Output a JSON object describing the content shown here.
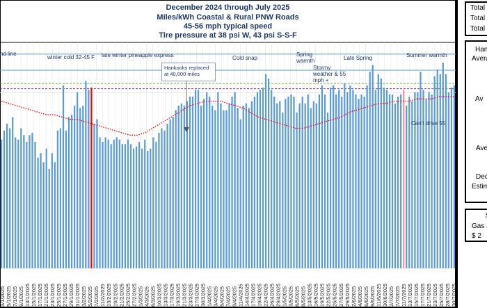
{
  "chart_data": {
    "type": "bar",
    "title_lines": [
      "December 2024 through July 2025",
      "Miles/kWh Coastal & Rural PNW Roads",
      "45-56 mph typical speed",
      "Tire pressure at 38 psi W, 43 psi S-S-F"
    ],
    "annotations": [
      {
        "key": "a0",
        "text": "nd line"
      },
      {
        "key": "a1",
        "text": "winter cold  32-45 F"
      },
      {
        "key": "a2",
        "text": "late winter pineapple express"
      },
      {
        "key": "a3",
        "text": "Cold snap"
      },
      {
        "key": "a4",
        "text": "Spring warmth"
      },
      {
        "key": "a5",
        "text": "Stormy weather & 55 mph +"
      },
      {
        "key": "a6",
        "text": "Late Spring"
      },
      {
        "key": "a7",
        "text": "Summer warmth"
      },
      {
        "key": "a8",
        "text": "Can't drive 55"
      }
    ],
    "callout": "Hankooks  replaced at 40,000 miles",
    "x_labels": [
      "3/1/2025",
      "5/1/2025",
      "7/1/2025",
      "9/1/2025",
      "13/1/2025",
      "15/1/2025",
      "17/1/2025",
      "21/1/2025",
      "23/1/2025",
      "25/1/2025",
      "27/1/2025",
      "29/1/2025",
      "31/1/2025",
      "3/2/2025",
      "5/2/2025",
      "7/2/2025",
      "11/2/2025",
      "13/2/2025",
      "19/2/2025",
      "21/2/2025",
      "25/2/2025",
      "27/2/2025",
      "1/3/2025",
      "4/3/2025",
      "6/3/2025",
      "10/3/2025",
      "13/3/2025",
      "17/3/2025",
      "19/3/2025",
      "21/3/2025",
      "23/3/2025",
      "27/3/2025",
      "30/3/2025",
      "1/4/2025",
      "3/4/2025",
      "5/4/2025",
      "7/4/2025",
      "9/4/2025",
      "11/4/2025",
      "14/4/2025",
      "17/4/2025",
      "19/4/2025",
      "22/4/2025",
      "26/4/2025",
      "29/4/2025",
      "1/5/2025",
      "3/5/2025",
      "6/5/2025",
      "8/5/2025",
      "13/5/2025",
      "16/5/2025",
      "19/5/2025",
      "22/5/2025",
      "25/5/2025",
      "27/5/2025",
      "29/5/2025",
      "2/6/2025",
      "4/6/2025",
      "6/6/2025",
      "9/6/2025",
      "11/6/2025",
      "30/6/2025",
      "2/7/2025",
      "7/7/2025",
      "11/7/2025",
      "13/7/2025",
      "15/7/2025",
      "17/7/2025",
      "21/7/2025",
      "23/7/2025",
      "25/7/2025",
      "28/7/2025",
      "30/7/2025"
    ],
    "bar_levels": [
      0.57,
      0.61,
      0.64,
      0.62,
      0.67,
      0.58,
      0.57,
      0.62,
      0.59,
      0.56,
      0.59,
      0.6,
      0.56,
      0.49,
      0.51,
      0.47,
      0.53,
      0.44,
      0.51,
      0.47,
      0.61,
      0.62,
      0.81,
      0.61,
      0.67,
      0.68,
      0.72,
      0.78,
      0.71,
      0.72,
      0.83,
      0.79,
      0.8,
      0.64,
      0.66,
      0.58,
      0.56,
      0.58,
      0.57,
      0.55,
      0.57,
      0.58,
      0.57,
      0.55,
      0.55,
      0.57,
      0.55,
      0.53,
      0.54,
      0.56,
      0.53,
      0.57,
      0.52,
      0.53,
      0.58,
      0.56,
      0.6,
      0.62,
      0.61,
      0.64,
      0.66,
      0.67,
      0.7,
      0.72,
      0.73,
      0.72,
      0.74,
      0.76,
      0.76,
      0.79,
      0.79,
      0.72,
      0.75,
      0.78,
      0.76,
      0.72,
      0.7,
      0.78,
      0.73,
      0.7,
      0.7,
      0.73,
      0.76,
      0.78,
      0.71,
      0.66,
      0.72,
      0.73,
      0.71,
      0.74,
      0.76,
      0.78,
      0.79,
      0.8,
      0.86,
      0.84,
      0.79,
      0.76,
      0.73,
      0.74,
      0.69,
      0.75,
      0.76,
      0.77,
      0.76,
      0.69,
      0.73,
      0.76,
      0.73,
      0.77,
      0.71,
      0.74,
      0.73,
      0.77,
      0.81,
      0.77,
      0.69,
      0.8,
      0.81,
      0.77,
      0.79,
      0.76,
      0.82,
      0.78,
      0.81,
      0.79,
      0.77,
      0.75,
      0.77,
      0.76,
      0.81,
      0.87,
      0.9,
      0.79,
      0.86,
      0.84,
      0.8,
      0.79,
      0.77,
      0.77,
      0.73,
      0.76,
      0.77,
      0.79,
      0.72,
      0.76,
      0.74,
      0.78,
      0.78,
      0.87,
      0.79,
      0.75,
      0.78,
      0.77,
      0.85,
      0.88,
      0.86,
      0.91,
      0.86,
      0.78,
      0.8,
      0.81
    ],
    "moving_avg_levels": [
      0.74,
      0.73,
      0.72,
      0.71,
      0.7,
      0.69,
      0.68,
      0.68,
      0.67,
      0.66,
      0.66,
      0.65,
      0.64,
      0.63,
      0.62,
      0.61,
      0.6,
      0.59,
      0.59,
      0.6,
      0.62,
      0.64,
      0.66,
      0.68,
      0.7,
      0.72,
      0.73,
      0.74,
      0.74,
      0.74,
      0.73,
      0.72,
      0.71,
      0.69,
      0.67,
      0.66,
      0.65,
      0.64,
      0.63,
      0.62,
      0.62,
      0.63,
      0.64,
      0.65,
      0.66,
      0.67,
      0.69,
      0.7,
      0.71,
      0.72,
      0.73,
      0.73,
      0.74,
      0.74,
      0.74,
      0.75,
      0.75,
      0.75,
      0.76,
      0.76,
      0.76
    ],
    "reference_lines": [
      {
        "level": 0.948,
        "color": "#5b9bd5"
      },
      {
        "level": 0.877,
        "color": "#5b9bd5"
      },
      {
        "level": 0.818,
        "color": "#70ad47"
      },
      {
        "level": 0.795,
        "color": "#7030a0"
      },
      {
        "level": 0.777,
        "color": "#e6e6e6"
      }
    ],
    "marker_red_index": 32,
    "marker_pink_index": 143,
    "grid": true,
    "colors": {
      "bar": "#5b9bd5",
      "bar_marker": "#ff0000",
      "bar_pink": "#ff8fa3",
      "moving_avg": "#ff0000",
      "title": "#1f3864"
    }
  },
  "side_panel": {
    "totals": [
      "Total",
      "Total",
      "Total"
    ],
    "labels": [
      "Han",
      "Avera",
      "Av",
      "Ave",
      "Dec",
      "Estim",
      "Gas a",
      "$  2"
    ],
    "dollar": "$"
  }
}
